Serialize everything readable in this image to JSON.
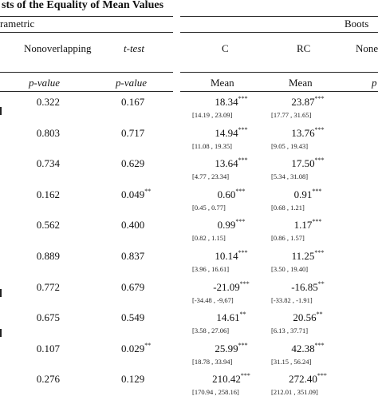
{
  "title": "sts of the Equality of Mean Values",
  "groups": {
    "left": "rametric",
    "right": "Boots"
  },
  "columns": {
    "nonoverlapping": "Nonoverlapping",
    "ttest": "t-test",
    "c": "C",
    "rc": "RC",
    "none_partial": "None"
  },
  "subheaders": {
    "p1": "p-value",
    "p2": "p-value",
    "mean_c": "Mean",
    "mean_rc": "Mean",
    "p_partial": "p"
  },
  "rows": [
    {
      "nonoverlap": "0.322",
      "ttest": "0.167",
      "ttest_sig": "",
      "c_mean": "18.34",
      "c_sig": "***",
      "c_ci": "[14.19 , 23.09]",
      "rc_mean": "23.87",
      "rc_sig": "***",
      "rc_ci": "[17.77 , 31.65]"
    },
    {
      "nonoverlap": "0.803",
      "ttest": "0.717",
      "ttest_sig": "",
      "c_mean": "14.94",
      "c_sig": "***",
      "c_ci": "[11.08 , 19.35]",
      "rc_mean": "13.76",
      "rc_sig": "***",
      "rc_ci": "[9.05 , 19.43]"
    },
    {
      "nonoverlap": "0.734",
      "ttest": "0.629",
      "ttest_sig": "",
      "c_mean": "13.64",
      "c_sig": "***",
      "c_ci": "[4.77 , 23.34]",
      "rc_mean": "17.50",
      "rc_sig": "***",
      "rc_ci": "[5.34 , 31.08]"
    },
    {
      "nonoverlap": "0.162",
      "ttest": "0.049",
      "ttest_sig": "**",
      "c_mean": "0.60",
      "c_sig": "***",
      "c_ci": "[0.45 , 0.77]",
      "rc_mean": "0.91",
      "rc_sig": "***",
      "rc_ci": "[0.68 , 1.21]"
    },
    {
      "nonoverlap": "0.562",
      "ttest": "0.400",
      "ttest_sig": "",
      "c_mean": "0.99",
      "c_sig": "***",
      "c_ci": "[0.82 , 1.15]",
      "rc_mean": "1.17",
      "rc_sig": "***",
      "rc_ci": "[0.86 , 1.57]"
    },
    {
      "nonoverlap": "0.889",
      "ttest": "0.837",
      "ttest_sig": "",
      "c_mean": "10.14",
      "c_sig": "***",
      "c_ci": "[3.96 , 16.61]",
      "rc_mean": "11.25",
      "rc_sig": "***",
      "rc_ci": "[3.50 , 19.40]"
    },
    {
      "nonoverlap": "0.772",
      "ttest": "0.679",
      "ttest_sig": "",
      "c_mean": "-21.09",
      "c_sig": "***",
      "c_ci": "[-34.48 , -9,67]",
      "rc_mean": "-16.85",
      "rc_sig": "**",
      "rc_ci": "[-33.82 , -1.91]"
    },
    {
      "nonoverlap": "0.675",
      "ttest": "0.549",
      "ttest_sig": "",
      "c_mean": "14.61",
      "c_sig": "**",
      "c_ci": "[3.58 , 27.06]",
      "rc_mean": "20.56",
      "rc_sig": "**",
      "rc_ci": "[6.13 , 37.71]"
    },
    {
      "nonoverlap": "0.107",
      "ttest": "0.029",
      "ttest_sig": "**",
      "c_mean": "25.99",
      "c_sig": "***",
      "c_ci": "[18.78 , 33.94]",
      "rc_mean": "42.38",
      "rc_sig": "***",
      "rc_ci": "[31.15 , 56.24]"
    },
    {
      "nonoverlap": "0.276",
      "ttest": "0.129",
      "ttest_sig": "",
      "c_mean": "210.42",
      "c_sig": "***",
      "c_ci": "[170.94 , 258.16]",
      "rc_mean": "272.40",
      "rc_sig": "***",
      "rc_ci": "[212.01 , 351.09]"
    }
  ]
}
